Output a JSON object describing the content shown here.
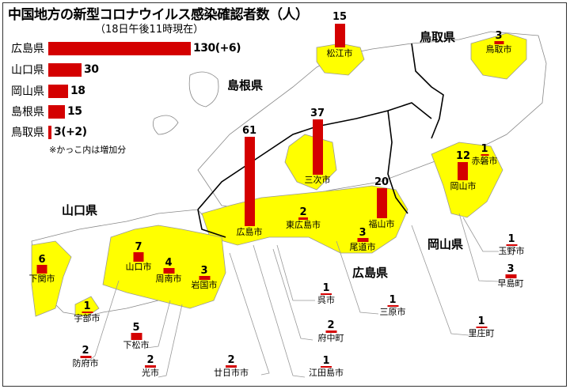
{
  "title": "中国地方の新型コロナウイルス感染確認者数（人）",
  "subtitle": "（18日午後11時現在）",
  "legend": [
    {
      "pref": "広島県",
      "count": 130,
      "label": "130(+6)"
    },
    {
      "pref": "山口県",
      "count": 30,
      "label": "30"
    },
    {
      "pref": "岡山県",
      "count": 18,
      "label": "18"
    },
    {
      "pref": "島根県",
      "count": 15,
      "label": "15"
    },
    {
      "pref": "鳥取県",
      "count": 3,
      "label": "3(+2)"
    }
  ],
  "note": "※かっこ内は増加分",
  "prefectures": {
    "tottori": "鳥取県",
    "shimane": "島根県",
    "yamaguchi": "山口県",
    "hiroshima": "広島県",
    "okayama": "岡山県"
  },
  "colors": {
    "bar": "#d40000",
    "affected_area": "#ffff00",
    "unaffected_area": "#ffffff"
  },
  "cities": [
    {
      "name": "松江市",
      "count": "15"
    },
    {
      "name": "鳥取市",
      "count": "3"
    },
    {
      "name": "三次市",
      "count": "37"
    },
    {
      "name": "広島市",
      "count": "61"
    },
    {
      "name": "東広島市",
      "count": "2"
    },
    {
      "name": "福山市",
      "count": "20"
    },
    {
      "name": "尾道市",
      "count": "3"
    },
    {
      "name": "岡山市",
      "count": "12"
    },
    {
      "name": "赤磐市",
      "count": "1"
    },
    {
      "name": "山口市",
      "count": "7"
    },
    {
      "name": "周南市",
      "count": "4"
    },
    {
      "name": "岩国市",
      "count": "3"
    },
    {
      "name": "下関市",
      "count": "6"
    },
    {
      "name": "宇部市",
      "count": "1"
    },
    {
      "name": "下松市",
      "count": "5"
    },
    {
      "name": "防府市",
      "count": "2"
    },
    {
      "name": "光市",
      "count": "2"
    },
    {
      "name": "廿日市市",
      "count": "2"
    },
    {
      "name": "江田島市",
      "count": "1"
    },
    {
      "name": "府中町",
      "count": "2"
    },
    {
      "name": "呉市",
      "count": "1"
    },
    {
      "name": "三原市",
      "count": "1"
    },
    {
      "name": "里庄町",
      "count": "1"
    },
    {
      "name": "玉野市",
      "count": "1"
    },
    {
      "name": "早島町",
      "count": "3"
    }
  ]
}
